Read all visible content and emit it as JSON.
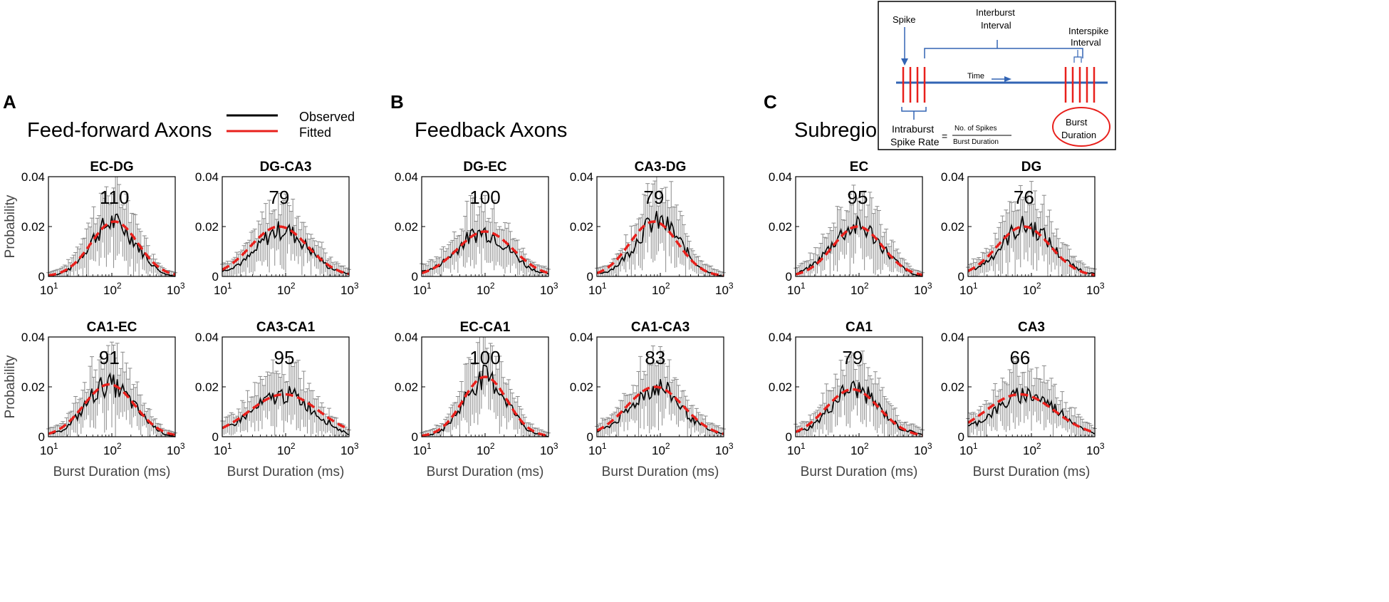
{
  "figure": {
    "panel_letters": [
      "A",
      "B",
      "C"
    ],
    "panel_titles": [
      "Feed-forward Axons",
      "Feedback Axons",
      "Subregion"
    ],
    "legend": {
      "entries": [
        {
          "label": "Observed",
          "color": "#000000"
        },
        {
          "label": "Fitted",
          "color": "#e8201c"
        }
      ]
    },
    "colors": {
      "observed": "#000000",
      "fitted": "#e8201c",
      "errorbar": "#8a8a8a",
      "schematic_line": "#3264b4",
      "schematic_spike": "#e8201c"
    },
    "axis_labels": {
      "ylabel": "Probability",
      "xlabel": "Burst Duration (ms)"
    },
    "y_ticks": [
      "0",
      "0.02",
      "0.04"
    ],
    "x_ticks": [
      {
        "base": "10",
        "exp": "1"
      },
      {
        "base": "10",
        "exp": "2"
      },
      {
        "base": "10",
        "exp": "3"
      }
    ]
  },
  "inset": {
    "spike_label": "Spike",
    "interburst_label": [
      "Interburst",
      "Interval"
    ],
    "interspike_label": [
      "Interspike",
      "Interval"
    ],
    "time_label": "Time",
    "intraburst_label": [
      "Intraburst",
      "Spike Rate"
    ],
    "equals": "=",
    "fraction_numerator": "No. of Spikes",
    "fraction_denominator": "Burst Duration",
    "burst_duration_label": [
      "Burst",
      "Duration"
    ]
  },
  "chart_data": [
    {
      "type": "line",
      "title": "EC-DG",
      "peak_label": "110",
      "xscale": "log",
      "xlim": [
        10,
        1000
      ],
      "ylim": [
        0,
        0.04
      ],
      "series": [
        {
          "name": "Observed",
          "x": [
            10,
            15,
            22,
            33,
            47,
            68,
            100,
            147,
            215,
            316,
            464,
            681,
            1000
          ],
          "values": [
            0.0,
            0.001,
            0.003,
            0.008,
            0.014,
            0.019,
            0.022,
            0.02,
            0.015,
            0.009,
            0.004,
            0.001,
            0.0
          ]
        },
        {
          "name": "Fitted",
          "peak_x": 110,
          "peak_y": 0.022,
          "log_sigma": 0.37
        }
      ]
    },
    {
      "type": "line",
      "title": "DG-CA3",
      "peak_label": "79",
      "xscale": "log",
      "xlim": [
        10,
        1000
      ],
      "ylim": [
        0,
        0.04
      ],
      "series": [
        {
          "name": "Observed",
          "x": [
            10,
            15,
            22,
            33,
            47,
            68,
            100,
            147,
            215,
            316,
            464,
            681,
            1000
          ],
          "values": [
            0.002,
            0.004,
            0.006,
            0.01,
            0.015,
            0.018,
            0.019,
            0.016,
            0.012,
            0.008,
            0.004,
            0.002,
            0.001
          ]
        },
        {
          "name": "Fitted",
          "peak_x": 79,
          "peak_y": 0.02,
          "log_sigma": 0.45
        }
      ]
    },
    {
      "type": "line",
      "title": "DG-EC",
      "peak_label": "100",
      "xscale": "log",
      "xlim": [
        10,
        1000
      ],
      "ylim": [
        0,
        0.04
      ],
      "series": [
        {
          "name": "Observed",
          "x": [
            10,
            15,
            22,
            33,
            47,
            68,
            100,
            147,
            215,
            316,
            464,
            681,
            1000
          ],
          "values": [
            0.002,
            0.003,
            0.006,
            0.01,
            0.014,
            0.017,
            0.018,
            0.016,
            0.012,
            0.008,
            0.004,
            0.002,
            0.001
          ]
        },
        {
          "name": "Fitted",
          "peak_x": 100,
          "peak_y": 0.018,
          "log_sigma": 0.44
        }
      ]
    },
    {
      "type": "line",
      "title": "CA3-DG",
      "peak_label": "79",
      "xscale": "log",
      "xlim": [
        10,
        1000
      ],
      "ylim": [
        0,
        0.04
      ],
      "series": [
        {
          "name": "Observed",
          "x": [
            10,
            15,
            22,
            33,
            47,
            68,
            100,
            147,
            215,
            316,
            464,
            681,
            1000
          ],
          "values": [
            0.001,
            0.002,
            0.005,
            0.01,
            0.016,
            0.021,
            0.022,
            0.019,
            0.013,
            0.007,
            0.003,
            0.001,
            0.0
          ]
        },
        {
          "name": "Fitted",
          "peak_x": 79,
          "peak_y": 0.022,
          "log_sigma": 0.38
        }
      ]
    },
    {
      "type": "line",
      "title": "EC",
      "peak_label": "95",
      "xscale": "log",
      "xlim": [
        10,
        1000
      ],
      "ylim": [
        0,
        0.04
      ],
      "series": [
        {
          "name": "Observed",
          "x": [
            10,
            15,
            22,
            33,
            47,
            68,
            100,
            147,
            215,
            316,
            464,
            681,
            1000
          ],
          "values": [
            0.001,
            0.003,
            0.006,
            0.011,
            0.016,
            0.019,
            0.02,
            0.018,
            0.013,
            0.008,
            0.004,
            0.001,
            0.0
          ]
        },
        {
          "name": "Fitted",
          "peak_x": 95,
          "peak_y": 0.02,
          "log_sigma": 0.39
        }
      ]
    },
    {
      "type": "line",
      "title": "DG",
      "peak_label": "76",
      "xscale": "log",
      "xlim": [
        10,
        1000
      ],
      "ylim": [
        0,
        0.04
      ],
      "series": [
        {
          "name": "Observed",
          "x": [
            10,
            15,
            22,
            33,
            47,
            68,
            100,
            147,
            215,
            316,
            464,
            681,
            1000
          ],
          "values": [
            0.002,
            0.004,
            0.007,
            0.012,
            0.017,
            0.02,
            0.02,
            0.017,
            0.012,
            0.007,
            0.004,
            0.002,
            0.001
          ]
        },
        {
          "name": "Fitted",
          "peak_x": 76,
          "peak_y": 0.02,
          "log_sigma": 0.42
        }
      ]
    },
    {
      "type": "line",
      "title": "CA1-EC",
      "peak_label": "91",
      "xscale": "log",
      "xlim": [
        10,
        1000
      ],
      "ylim": [
        0,
        0.04
      ],
      "series": [
        {
          "name": "Observed",
          "x": [
            10,
            15,
            22,
            33,
            47,
            68,
            100,
            147,
            215,
            316,
            464,
            681,
            1000
          ],
          "values": [
            0.001,
            0.002,
            0.005,
            0.01,
            0.016,
            0.02,
            0.021,
            0.018,
            0.013,
            0.008,
            0.004,
            0.001,
            0.0
          ]
        },
        {
          "name": "Fitted",
          "peak_x": 91,
          "peak_y": 0.021,
          "log_sigma": 0.4
        }
      ]
    },
    {
      "type": "line",
      "title": "CA3-CA1",
      "peak_label": "95",
      "xscale": "log",
      "xlim": [
        10,
        1000
      ],
      "ylim": [
        0,
        0.04
      ],
      "series": [
        {
          "name": "Observed",
          "x": [
            10,
            15,
            22,
            33,
            47,
            68,
            100,
            147,
            215,
            316,
            464,
            681,
            1000
          ],
          "values": [
            0.003,
            0.005,
            0.008,
            0.011,
            0.014,
            0.016,
            0.017,
            0.016,
            0.013,
            0.009,
            0.006,
            0.003,
            0.001
          ]
        },
        {
          "name": "Fitted",
          "peak_x": 95,
          "peak_y": 0.017,
          "log_sigma": 0.55
        }
      ]
    },
    {
      "type": "line",
      "title": "EC-CA1",
      "peak_label": "100",
      "xscale": "log",
      "xlim": [
        10,
        1000
      ],
      "ylim": [
        0,
        0.04
      ],
      "series": [
        {
          "name": "Observed",
          "x": [
            10,
            15,
            22,
            33,
            47,
            68,
            100,
            147,
            215,
            316,
            464,
            681,
            1000
          ],
          "values": [
            0.0,
            0.001,
            0.003,
            0.008,
            0.015,
            0.021,
            0.024,
            0.021,
            0.015,
            0.008,
            0.003,
            0.001,
            0.0
          ]
        },
        {
          "name": "Fitted",
          "peak_x": 100,
          "peak_y": 0.024,
          "log_sigma": 0.35
        }
      ]
    },
    {
      "type": "line",
      "title": "CA1-CA3",
      "peak_label": "83",
      "xscale": "log",
      "xlim": [
        10,
        1000
      ],
      "ylim": [
        0,
        0.04
      ],
      "series": [
        {
          "name": "Observed",
          "x": [
            10,
            15,
            22,
            33,
            47,
            68,
            100,
            147,
            215,
            316,
            464,
            681,
            1000
          ],
          "values": [
            0.002,
            0.004,
            0.007,
            0.011,
            0.016,
            0.019,
            0.02,
            0.017,
            0.012,
            0.007,
            0.004,
            0.002,
            0.001
          ]
        },
        {
          "name": "Fitted",
          "peak_x": 83,
          "peak_y": 0.02,
          "log_sigma": 0.45
        }
      ]
    },
    {
      "type": "line",
      "title": "CA1",
      "peak_label": "79",
      "xscale": "log",
      "xlim": [
        10,
        1000
      ],
      "ylim": [
        0,
        0.04
      ],
      "series": [
        {
          "name": "Observed",
          "x": [
            10,
            15,
            22,
            33,
            47,
            68,
            100,
            147,
            215,
            316,
            464,
            681,
            1000
          ],
          "values": [
            0.002,
            0.003,
            0.006,
            0.011,
            0.016,
            0.019,
            0.019,
            0.016,
            0.011,
            0.007,
            0.003,
            0.002,
            0.001
          ]
        },
        {
          "name": "Fitted",
          "peak_x": 79,
          "peak_y": 0.019,
          "log_sigma": 0.42
        }
      ]
    },
    {
      "type": "line",
      "title": "CA3",
      "peak_label": "66",
      "xscale": "log",
      "xlim": [
        10,
        1000
      ],
      "ylim": [
        0,
        0.04
      ],
      "series": [
        {
          "name": "Observed",
          "x": [
            10,
            15,
            22,
            33,
            47,
            68,
            100,
            147,
            215,
            316,
            464,
            681,
            1000
          ],
          "values": [
            0.004,
            0.006,
            0.009,
            0.012,
            0.015,
            0.017,
            0.017,
            0.015,
            0.012,
            0.009,
            0.006,
            0.003,
            0.001
          ]
        },
        {
          "name": "Fitted",
          "peak_x": 66,
          "peak_y": 0.017,
          "log_sigma": 0.55
        }
      ]
    }
  ]
}
